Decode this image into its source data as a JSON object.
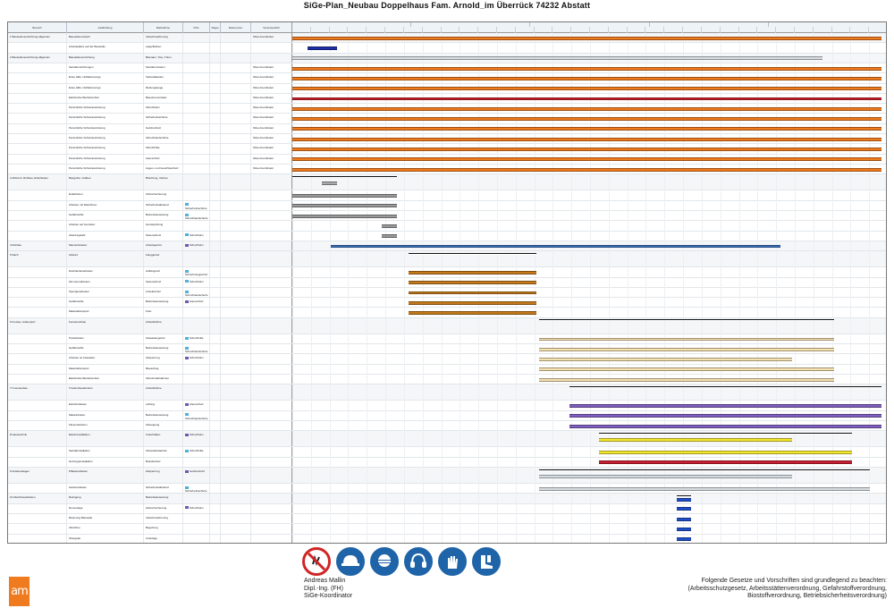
{
  "document": {
    "title": "SiGe-Plan_Neubau Doppelhaus Fam. Arnold_im Überrück 74232 Abstatt"
  },
  "table": {
    "headers": [
      "Bereich",
      "Gefährdung",
      "Maßnahme",
      "PSA",
      "Regel",
      "Referenzen",
      "Verantwortlich"
    ],
    "months": [
      "",
      "",
      "",
      "",
      ""
    ],
    "week_count": 32,
    "rows": [
      {
        "type": "group",
        "bereich": "1 Baustelleneinrichtung allgemein",
        "gef": "Baustellenverkehr",
        "mass": "Verkehrssicherung",
        "psa": "",
        "regel": "",
        "refs": "",
        "verant": "SiGe-Koordinator",
        "bars": [
          {
            "s": 0,
            "e": 0.99,
            "c": "#f07a1e"
          }
        ]
      },
      {
        "type": "item",
        "bereich": "",
        "gef": "Arbeitsplätze auf der Baustelle",
        "mass": "Lagerflächen",
        "psa": "",
        "regel": "",
        "refs": "",
        "verant": "",
        "bars": [
          {
            "s": 0.025,
            "e": 0.075,
            "c": "#1e2fa8"
          }
        ]
      },
      {
        "type": "group",
        "bereich": "2 Baustelleneinrichtung allgemein",
        "gef": "Baustelleneinrichtung",
        "mass": "Bauzaun, Tore, Türen",
        "psa": "",
        "regel": "",
        "refs": "",
        "verant": "",
        "bars": [
          {
            "s": 0,
            "e": 0.89,
            "c": "#d8dde2"
          }
        ]
      },
      {
        "type": "item",
        "bereich": "",
        "gef": "Sanitäreinrichtungen",
        "mass": "Sanitärcontainer",
        "psa": "",
        "regel": "",
        "refs": "",
        "verant": "SiGe-Koordinator",
        "bars": [
          {
            "s": 0,
            "e": 0.99,
            "c": "#f07a1e"
          }
        ]
      },
      {
        "type": "item",
        "bereich": "",
        "gef": "Erste Hilfe, Notfallvorsorge",
        "mass": "Verbandkasten",
        "psa": "",
        "regel": "",
        "refs": "",
        "verant": "SiGe-Koordinator",
        "bars": [
          {
            "s": 0,
            "e": 0.99,
            "c": "#f07a1e"
          }
        ]
      },
      {
        "type": "item",
        "bereich": "",
        "gef": "Erste Hilfe, Notfallvorsorge",
        "mass": "Rettungswege",
        "psa": "",
        "regel": "",
        "refs": "",
        "verant": "SiGe-Koordinator",
        "bars": [
          {
            "s": 0,
            "e": 0.99,
            "c": "#f07a1e"
          }
        ]
      },
      {
        "type": "item",
        "bereich": "",
        "gef": "Elektrische Betriebsmittel",
        "mass": "Baustromverteiler",
        "psa": "",
        "regel": "",
        "refs": "",
        "verant": "SiGe-Koordinator",
        "bars": [
          {
            "s": 0,
            "e": 0.99,
            "c": "#d0202a"
          }
        ]
      },
      {
        "type": "item",
        "bereich": "",
        "gef": "Persönliche Schutzausrüstung",
        "mass": "Schutzhelm",
        "psa": "",
        "regel": "",
        "refs": "",
        "verant": "SiGe-Koordinator",
        "bars": [
          {
            "s": 0,
            "e": 0.99,
            "c": "#f07a1e"
          }
        ]
      },
      {
        "type": "item",
        "bereich": "",
        "gef": "Persönliche Schutzausrüstung",
        "mass": "Sicherheitsschuhe",
        "psa": "",
        "regel": "",
        "refs": "",
        "verant": "SiGe-Koordinator",
        "bars": [
          {
            "s": 0,
            "e": 0.99,
            "c": "#f07a1e"
          }
        ]
      },
      {
        "type": "item",
        "bereich": "",
        "gef": "Persönliche Schutzausrüstung",
        "mass": "Gehörschutz",
        "psa": "",
        "regel": "",
        "refs": "",
        "verant": "SiGe-Koordinator",
        "bars": [
          {
            "s": 0,
            "e": 0.99,
            "c": "#f07a1e"
          }
        ]
      },
      {
        "type": "item",
        "bereich": "",
        "gef": "Persönliche Schutzausrüstung",
        "mass": "Schutzhandschuhe",
        "psa": "",
        "regel": "",
        "refs": "",
        "verant": "SiGe-Koordinator",
        "bars": [
          {
            "s": 0,
            "e": 0.99,
            "c": "#f07a1e"
          }
        ]
      },
      {
        "type": "item",
        "bereich": "",
        "gef": "Persönliche Schutzausrüstung",
        "mass": "Schutzbrille",
        "psa": "",
        "regel": "",
        "refs": "",
        "verant": "SiGe-Koordinator",
        "bars": [
          {
            "s": 0,
            "e": 0.99,
            "c": "#f07a1e"
          }
        ]
      },
      {
        "type": "item",
        "bereich": "",
        "gef": "Persönliche Schutzausrüstung",
        "mass": "Atemschutz",
        "psa": "",
        "regel": "",
        "refs": "",
        "verant": "SiGe-Koordinator",
        "bars": [
          {
            "s": 0,
            "e": 0.99,
            "c": "#f07a1e"
          }
        ]
      },
      {
        "type": "item",
        "bereich": "",
        "gef": "Persönliche Schutzausrüstung",
        "mass": "Augen- und Gesichtsschutz",
        "psa": "",
        "regel": "",
        "refs": "",
        "verant": "SiGe-Koordinator",
        "bars": [
          {
            "s": 0,
            "e": 0.99,
            "c": "#f07a1e"
          }
        ]
      },
      {
        "type": "group",
        "bereich": "3 Abbruch, Rohbau, Erdarbeiten",
        "gef": "Baugrube, Gräben",
        "mass": "Böschung, Verbau",
        "psa": "",
        "regel": "",
        "refs": "",
        "verant": "",
        "tall": true,
        "bars": [
          {
            "s": 0,
            "e": 0.175,
            "c": "#ffffff",
            "o": "#111"
          },
          {
            "s": 0.05,
            "e": 0.075,
            "c": "#aaaaaa"
          }
        ]
      },
      {
        "type": "item",
        "bereich": "",
        "gef": "Erdarbeiten",
        "mass": "Absturzsicherung",
        "psa": "",
        "regel": "",
        "refs": "",
        "verant": "",
        "bars": [
          {
            "s": 0,
            "e": 0.175,
            "c": "#999999"
          }
        ]
      },
      {
        "type": "item",
        "bereich": "",
        "gef": "Arbeiten mit Maschinen",
        "mass": "Sicherheitsabstand",
        "psa": "Sicherheitsschuhe",
        "psa_c": "#4fb0d8",
        "regel": "",
        "refs": "",
        "verant": "",
        "bars": [
          {
            "s": 0,
            "e": 0.175,
            "c": "#999999"
          }
        ]
      },
      {
        "type": "item",
        "bereich": "",
        "gef": "Gefahrstoffe",
        "mass": "Betriebsanweisung",
        "psa": "Schutzhandschuhe",
        "psa_c": "#4fb0d8",
        "regel": "",
        "refs": "",
        "verant": "",
        "bars": [
          {
            "s": 0,
            "e": 0.175,
            "c": "#999999"
          }
        ]
      },
      {
        "type": "item",
        "bereich": "",
        "gef": "Arbeiten auf Gerüsten",
        "mass": "Gerüstprüfung",
        "psa": "",
        "regel": "",
        "refs": "",
        "verant": "",
        "bars": [
          {
            "s": 0.15,
            "e": 0.175,
            "c": "#999999"
          }
        ]
      },
      {
        "type": "item",
        "bereich": "",
        "gef": "Absturzgefahr",
        "mass": "Seitenschutz",
        "psa": "Schutzhelm",
        "psa_c": "#4fb0d8",
        "regel": "",
        "refs": "",
        "verant": "",
        "bars": [
          {
            "s": 0.15,
            "e": 0.175,
            "c": "#999999"
          }
        ]
      },
      {
        "type": "group",
        "bereich": "4 Rohbau",
        "gef": "Maurerarbeiten",
        "mass": "Arbeitsgerüst",
        "psa": "Schutzhelm",
        "psa_c": "#7058b0",
        "regel": "",
        "refs": "",
        "verant": "",
        "bars": [
          {
            "s": 0.065,
            "e": 0.82,
            "c": "#3a72c0"
          }
        ]
      },
      {
        "type": "group",
        "bereich": "5 Dach",
        "gef": "Absturz",
        "mass": "Fanggerüst",
        "psa": "",
        "regel": "",
        "refs": "",
        "verant": "",
        "tall": true,
        "bars": [
          {
            "s": 0.195,
            "e": 0.41,
            "c": "#ffffff",
            "o": "#111"
          }
        ]
      },
      {
        "type": "item",
        "bereich": "",
        "gef": "Dachdeckerarbeiten",
        "mass": "Auffangnetz",
        "psa": "Sicherheitsgeschirr",
        "psa_c": "#4fb0d8",
        "regel": "",
        "refs": "",
        "verant": "",
        "bars": [
          {
            "s": 0.195,
            "e": 0.41,
            "c": "#c47a1c"
          }
        ]
      },
      {
        "type": "item",
        "bereich": "",
        "gef": "Zimmererarbeiten",
        "mass": "Seitenschutz",
        "psa": "Schutzhelm",
        "psa_c": "#4fb0d8",
        "regel": "",
        "refs": "",
        "verant": "",
        "bars": [
          {
            "s": 0.195,
            "e": 0.41,
            "c": "#c47a1c"
          }
        ]
      },
      {
        "type": "item",
        "bereich": "",
        "gef": "Spenglerarbeiten",
        "mass": "Anseilschutz",
        "psa": "Schutzhandschuhe",
        "psa_c": "#4fb0d8",
        "regel": "",
        "refs": "",
        "verant": "",
        "bars": [
          {
            "s": 0.195,
            "e": 0.41,
            "c": "#c47a1c"
          }
        ]
      },
      {
        "type": "item",
        "bereich": "",
        "gef": "Gefahrstoffe",
        "mass": "Betriebsanweisung",
        "psa": "Atemschutz",
        "psa_c": "#7058b0",
        "regel": "",
        "refs": "",
        "verant": "",
        "bars": [
          {
            "s": 0.195,
            "e": 0.41,
            "c": "#c47a1c"
          }
        ]
      },
      {
        "type": "item",
        "bereich": "",
        "gef": "Materialtransport",
        "mass": "Kran",
        "psa": "",
        "regel": "",
        "refs": "",
        "verant": "",
        "bars": [
          {
            "s": 0.195,
            "e": 0.41,
            "c": "#c47a1c"
          }
        ]
      },
      {
        "type": "group",
        "bereich": "6 Fenster, Außenputz",
        "gef": "Fenstereinbau",
        "mass": "Arbeitsbühne",
        "psa": "",
        "regel": "",
        "refs": "",
        "verant": "",
        "tall": true,
        "bars": [
          {
            "s": 0.415,
            "e": 0.91,
            "c": "#ffffff",
            "o": "#111"
          }
        ]
      },
      {
        "type": "item",
        "bereich": "",
        "gef": "Putzarbeiten",
        "mass": "Fassadengerüst",
        "psa": "Schutzbrille",
        "psa_c": "#4fb0d8",
        "regel": "",
        "refs": "",
        "verant": "",
        "bars": [
          {
            "s": 0.415,
            "e": 0.91,
            "c": "#f5e0b0"
          }
        ]
      },
      {
        "type": "item",
        "bereich": "",
        "gef": "Gefahrstoffe",
        "mass": "Betriebsanweisung",
        "psa": "Schutzhandschuhe",
        "psa_c": "#4fb0d8",
        "regel": "",
        "refs": "",
        "verant": "",
        "bars": [
          {
            "s": 0.415,
            "e": 0.91,
            "c": "#f5e0b0"
          }
        ]
      },
      {
        "type": "item",
        "bereich": "",
        "gef": "Arbeiten an Fassaden",
        "mass": "Absperrung",
        "psa": "Schutzhelm",
        "psa_c": "#7058b0",
        "regel": "",
        "refs": "",
        "verant": "",
        "bars": [
          {
            "s": 0.415,
            "e": 0.84,
            "c": "#f5e0b0"
          }
        ]
      },
      {
        "type": "item",
        "bereich": "",
        "gef": "Materialtransport",
        "mass": "Bauaufzug",
        "psa": "",
        "regel": "",
        "refs": "",
        "verant": "",
        "bars": [
          {
            "s": 0.415,
            "e": 0.91,
            "c": "#f5e0b0"
          }
        ]
      },
      {
        "type": "item",
        "bereich": "",
        "gef": "Elektrische Betriebsmittel",
        "mass": "Schutzmaßnahmen",
        "psa": "",
        "regel": "",
        "refs": "",
        "verant": "",
        "bars": [
          {
            "s": 0.415,
            "e": 0.91,
            "c": "#f5e0b0"
          }
        ]
      },
      {
        "type": "group",
        "bereich": "7 Innenausbau",
        "gef": "Trockenbauarbeiten",
        "mass": "Arbeitsbühne",
        "psa": "",
        "regel": "",
        "refs": "",
        "verant": "",
        "tall": true,
        "bars": [
          {
            "s": 0.465,
            "e": 0.99,
            "c": "#ffffff",
            "o": "#111"
          }
        ]
      },
      {
        "type": "item",
        "bereich": "",
        "gef": "Estricharbeiten",
        "mass": "Lüftung",
        "psa": "Atemschutz",
        "psa_c": "#7058b0",
        "regel": "",
        "refs": "",
        "verant": "",
        "bars": [
          {
            "s": 0.465,
            "e": 0.99,
            "c": "#8060c0"
          }
        ]
      },
      {
        "type": "item",
        "bereich": "",
        "gef": "Malerarbeiten",
        "mass": "Betriebsanweisung",
        "psa": "Schutzhandschuhe",
        "psa_c": "#4fb0d8",
        "regel": "",
        "refs": "",
        "verant": "",
        "bars": [
          {
            "s": 0.465,
            "e": 0.99,
            "c": "#8060c0"
          }
        ]
      },
      {
        "type": "item",
        "bereich": "",
        "gef": "Fliesenarbeiten",
        "mass": "Absaugung",
        "psa": "",
        "regel": "",
        "refs": "",
        "verant": "",
        "bars": [
          {
            "s": 0.465,
            "e": 0.99,
            "c": "#8060c0"
          }
        ]
      },
      {
        "type": "group",
        "bereich": "8 Haustechnik",
        "gef": "Elektroinstallation",
        "mass": "Freischalten",
        "psa": "Schutzhelm",
        "psa_c": "#7058b0",
        "regel": "",
        "refs": "",
        "verant": "",
        "tall": true,
        "bars": [
          {
            "s": 0.515,
            "e": 0.94,
            "c": "#ffffff",
            "o": "#111"
          },
          {
            "s": 0.515,
            "e": 0.84,
            "c": "#f5e830"
          }
        ]
      },
      {
        "type": "item",
        "bereich": "",
        "gef": "Sanitärinstallation",
        "mass": "Schweißerlaubnis",
        "psa": "Schutzbrille",
        "psa_c": "#4fb0d8",
        "regel": "",
        "refs": "",
        "verant": "",
        "bars": [
          {
            "s": 0.515,
            "e": 0.94,
            "c": "#f5e830"
          }
        ]
      },
      {
        "type": "item",
        "bereich": "",
        "gef": "Heizungsinstallation",
        "mass": "Brandschutz",
        "psa": "",
        "regel": "",
        "refs": "",
        "verant": "",
        "bars": [
          {
            "s": 0.515,
            "e": 0.94,
            "c": "#c82030"
          }
        ]
      },
      {
        "type": "group",
        "bereich": "9 Außenanlagen",
        "gef": "Pflasterarbeiten",
        "mass": "Absperrung",
        "psa": "Gehörschutz",
        "psa_c": "#7058b0",
        "regel": "",
        "refs": "",
        "verant": "",
        "tall": true,
        "bars": [
          {
            "s": 0.415,
            "e": 0.97,
            "c": "#ffffff",
            "o": "#111"
          },
          {
            "s": 0.415,
            "e": 0.84,
            "c": "#d8dde2"
          }
        ]
      },
      {
        "type": "item",
        "bereich": "",
        "gef": "Gartenarbeiten",
        "mass": "Sicherheitsabstand",
        "psa": "Sicherheitsschuhe",
        "psa_c": "#4fb0d8",
        "regel": "",
        "refs": "",
        "verant": "",
        "bars": [
          {
            "s": 0.415,
            "e": 0.97,
            "c": "#d8dde2"
          }
        ]
      },
      {
        "type": "group",
        "bereich": "10 Abschlussarbeiten",
        "gef": "Reinigung",
        "mass": "Betriebsanweisung",
        "psa": "",
        "regel": "",
        "refs": "",
        "verant": "",
        "bars": [
          {
            "s": 0.645,
            "e": 0.67,
            "c": "#ffffff",
            "o": "#111"
          },
          {
            "s": 0.645,
            "e": 0.67,
            "c": "#1e4ec8"
          }
        ]
      },
      {
        "type": "item",
        "bereich": "",
        "gef": "Demontage",
        "mass": "Absturzsicherung",
        "psa": "Schutzhelm",
        "psa_c": "#7058b0",
        "regel": "",
        "refs": "",
        "verant": "",
        "bars": [
          {
            "s": 0.645,
            "e": 0.67,
            "c": "#1e4ec8"
          }
        ]
      },
      {
        "type": "item",
        "bereich": "",
        "gef": "Räumung Baustelle",
        "mass": "Verkehrssicherung",
        "psa": "",
        "regel": "",
        "refs": "",
        "verant": "",
        "bars": [
          {
            "s": 0.645,
            "e": 0.67,
            "c": "#1e4ec8"
          }
        ]
      },
      {
        "type": "item",
        "bereich": "",
        "gef": "Abnahme",
        "mass": "Begehung",
        "psa": "",
        "regel": "",
        "refs": "",
        "verant": "",
        "bars": [
          {
            "s": 0.645,
            "e": 0.67,
            "c": "#1e4ec8"
          }
        ]
      },
      {
        "type": "item",
        "bereich": "",
        "gef": "Übergabe",
        "mass": "Unterlage",
        "psa": "",
        "regel": "",
        "refs": "",
        "verant": "",
        "bars": [
          {
            "s": 0.645,
            "e": 0.67,
            "c": "#1e4ec8"
          }
        ]
      }
    ]
  },
  "footer": {
    "logo_text": "am",
    "signs": [
      {
        "icon": "no-access-icon",
        "kind": "prohib"
      },
      {
        "icon": "helmet-icon",
        "kind": "blue"
      },
      {
        "icon": "goggles-icon",
        "kind": "blue"
      },
      {
        "icon": "ear-protection-icon",
        "kind": "blue"
      },
      {
        "icon": "gloves-icon",
        "kind": "blue"
      },
      {
        "icon": "safety-boots-icon",
        "kind": "blue"
      }
    ],
    "coordinator": [
      "Andreas Mallin",
      "Dipl.-Ing. (FH)",
      "SiGe-Koordinator"
    ],
    "laws": [
      "Folgende Gesetze und Vorschriften sind grundlegend zu beachten:",
      "(Arbeitsschutzgesetz, Arbeitsstättenverordnung, Gefahrstoffverordnung,",
      "Biostoffverordnung, Betriebsicherheitsverordnung)"
    ]
  }
}
